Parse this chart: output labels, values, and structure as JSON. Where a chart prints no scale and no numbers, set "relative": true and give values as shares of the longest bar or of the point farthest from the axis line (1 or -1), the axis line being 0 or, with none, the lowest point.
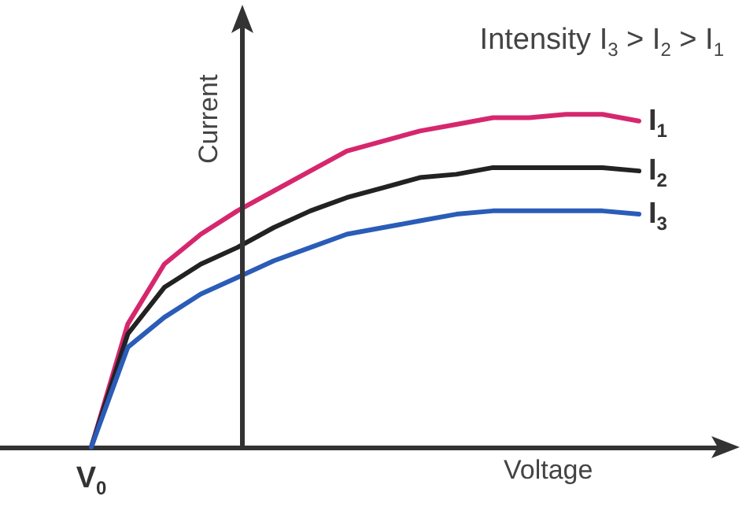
{
  "chart_data": {
    "type": "line",
    "relative": true,
    "title": "Intensity I$_{3}$ > I$_{2}$ > I$_{1}$",
    "xlabel": "Voltage",
    "ylabel": "Current",
    "annotations": [
      "V$_{0}$"
    ],
    "categories": [
      null,
      null,
      null,
      null,
      null,
      null,
      null,
      null,
      null,
      null,
      null,
      null,
      null,
      null,
      null,
      null,
      null,
      null,
      null,
      null
    ],
    "series": [
      {
        "name": "I$_{1}$",
        "color": "#d6276e",
        "values": [
          null,
          null,
          0,
          0.37,
          0.55,
          0.64,
          0.71,
          0.77,
          0.83,
          0.89,
          0.92,
          0.95,
          0.97,
          0.99,
          0.99,
          1,
          1,
          0.98,
          null,
          null
        ]
      },
      {
        "name": "I$_{2}$",
        "color": "#222222",
        "values": [
          null,
          null,
          0,
          0.34,
          0.48,
          0.55,
          0.6,
          0.66,
          0.71,
          0.75,
          0.78,
          0.81,
          0.82,
          0.84,
          0.84,
          0.84,
          0.84,
          0.83,
          null,
          null
        ]
      },
      {
        "name": "I$_{3}$",
        "color": "#2a5cb8",
        "values": [
          null,
          null,
          0,
          0.3,
          0.39,
          0.46,
          0.51,
          0.56,
          0.6,
          0.64,
          0.66,
          0.68,
          0.7,
          0.71,
          0.71,
          0.71,
          0.71,
          0.7,
          null,
          null
        ]
      }
    ]
  }
}
